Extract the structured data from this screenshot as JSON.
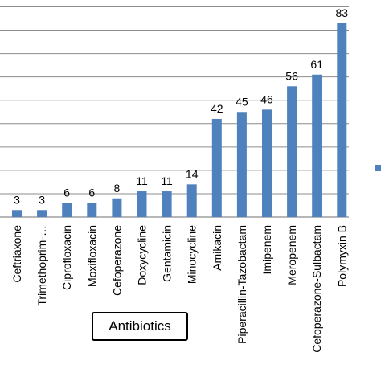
{
  "chart_data": {
    "type": "bar",
    "categories": [
      "Ceftriaxone",
      "Trimethoprim-…",
      "Ciprofloxacin",
      "Moxifloxacin",
      "Cefoperazone",
      "Doxycycline",
      "Gentamicin",
      "Minocycline",
      "Amikacin",
      "Piperacillin-Tazobactam",
      "Imipenem",
      "Meropenem",
      "Cefoperazone-Sulbactam",
      "Polymyxin B"
    ],
    "values": [
      3,
      3,
      6,
      6,
      8,
      11,
      11,
      14,
      42,
      45,
      46,
      56,
      61,
      83
    ],
    "data_labels": [
      "3",
      "3",
      "6",
      "6",
      "8",
      "11",
      "11",
      "14",
      "42",
      "45",
      "46",
      "56",
      "61",
      "83"
    ],
    "title": "",
    "xlabel": "Antibiotics",
    "ylabel": "",
    "ylim": [
      0,
      90
    ],
    "grid": true,
    "bar_color": "#4f81bd",
    "grid_color": "#8c8c8c",
    "legend_swatch_color": "#4f81bd"
  }
}
